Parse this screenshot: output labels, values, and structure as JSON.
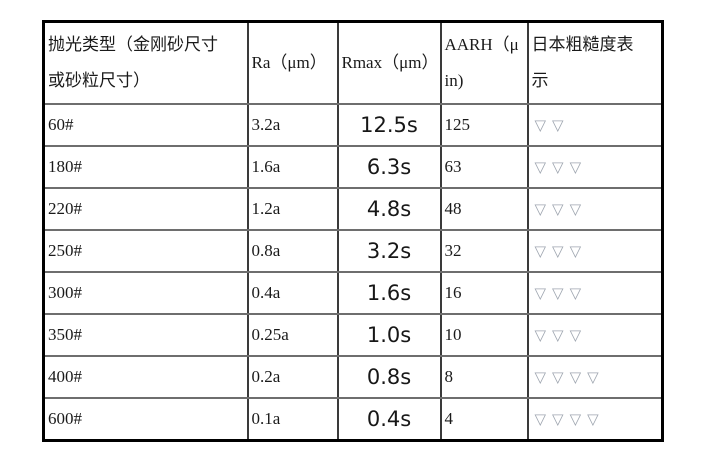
{
  "table": {
    "headers": {
      "polish_type": "抛光类型（金刚砂尺寸\n或砂粒尺寸）",
      "ra": "Ra（μm）",
      "rmax": "Rmax（μm）",
      "aarh": "AARH（μ\nin)",
      "jp": "日本粗糙度表\n示"
    },
    "rows": [
      {
        "grit": "60#",
        "ra": "3.2a",
        "rmax": "12.5s",
        "aarh": "125",
        "jp": "▽▽"
      },
      {
        "grit": "180#",
        "ra": "1.6a",
        "rmax": "6.3s",
        "aarh": "63",
        "jp": "▽▽▽"
      },
      {
        "grit": "220#",
        "ra": "1.2a",
        "rmax": "4.8s",
        "aarh": "48",
        "jp": "▽▽▽"
      },
      {
        "grit": "250#",
        "ra": "0.8a",
        "rmax": "3.2s",
        "aarh": "32",
        "jp": "▽▽▽"
      },
      {
        "grit": "300#",
        "ra": "0.4a",
        "rmax": "1.6s",
        "aarh": "16",
        "jp": "▽▽▽"
      },
      {
        "grit": "350#",
        "ra": "0.25a",
        "rmax": "1.0s",
        "aarh": "10",
        "jp": "▽▽▽"
      },
      {
        "grit": "400#",
        "ra": "0.2a",
        "rmax": "0.8s",
        "aarh": "8",
        "jp": "▽▽▽▽"
      },
      {
        "grit": "600#",
        "ra": "0.1a",
        "rmax": "0.4s",
        "aarh": "4",
        "jp": "▽▽▽▽"
      }
    ],
    "colors": {
      "triangle": "#9fa6b0",
      "outer_border": "#000000",
      "inner_horizontal_line": "#6e6e6e",
      "inner_vertical_line": "#3a3a3a"
    }
  }
}
